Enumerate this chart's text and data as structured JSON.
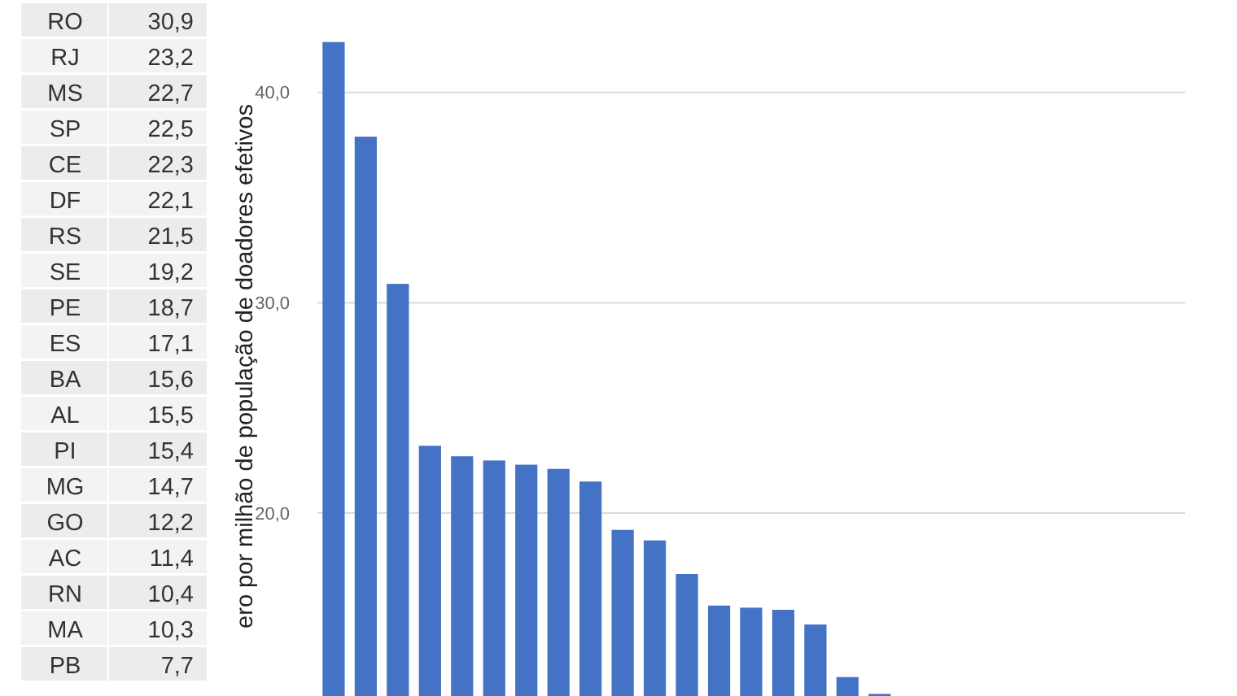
{
  "chart_data": [
    {
      "type": "other",
      "categories": [
        "RO",
        "RJ",
        "MS",
        "SP",
        "CE",
        "DF",
        "RS",
        "SE",
        "PE",
        "ES",
        "BA",
        "AL",
        "PI",
        "MG",
        "GO",
        "AC",
        "RN",
        "MA",
        "PB"
      ],
      "value_labels": [
        "30,9",
        "23,2",
        "22,7",
        "22,5",
        "22,3",
        "22,1",
        "21,5",
        "19,2",
        "18,7",
        "17,1",
        "15,6",
        "15,5",
        "15,4",
        "14,7",
        "12,2",
        "11,4",
        "10,4",
        "10,3",
        "7,7"
      ]
    },
    {
      "type": "bar",
      "ylabel": "ero por milhão de população de doadores efetivos",
      "categories": [
        null,
        null,
        null,
        null,
        null,
        null,
        null,
        null,
        null,
        null,
        null,
        null,
        null,
        null,
        null,
        null,
        null,
        null,
        null,
        null,
        null,
        null,
        null,
        null,
        null,
        null,
        null
      ],
      "values": [
        42.4,
        37.9,
        30.9,
        23.2,
        22.7,
        22.5,
        22.3,
        22.1,
        21.5,
        19.2,
        18.7,
        17.1,
        15.6,
        15.5,
        15.4,
        14.7,
        12.2,
        11.4,
        null,
        null,
        null,
        null,
        null,
        null,
        null,
        null,
        null
      ],
      "color": "#4472c4",
      "ylim": [
        11.3,
        44.4
      ],
      "yticks": [
        {
          "value": 20,
          "label": "20,0"
        },
        {
          "value": 30,
          "label": "30,0"
        },
        {
          "value": 40,
          "label": "40,0"
        }
      ],
      "grid": "y",
      "tick_labels": "y"
    }
  ]
}
